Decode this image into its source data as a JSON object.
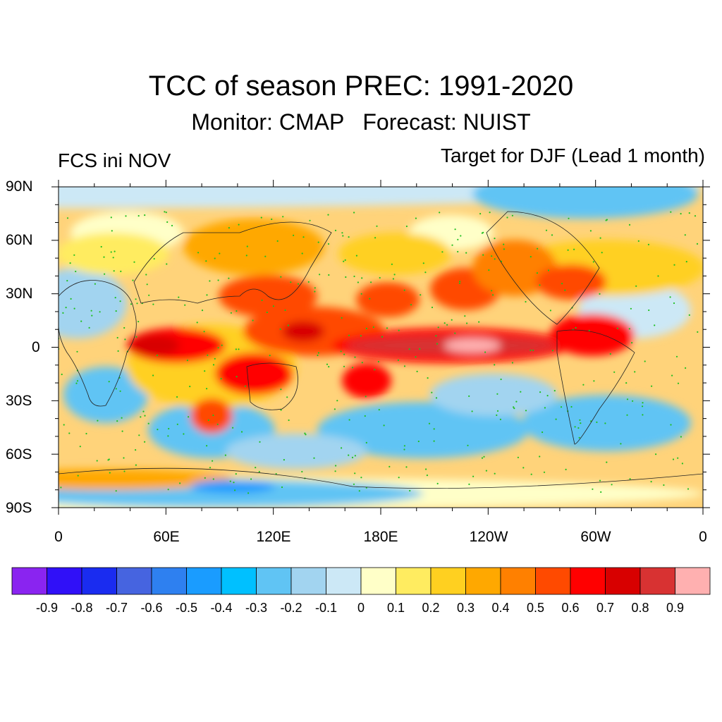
{
  "title": "TCC of season PREC: 1991-2020",
  "subtitle": "Monitor: CMAP   Forecast: NUIST",
  "left_label": "FCS ini NOV",
  "right_label": "Target for DJF (Lead 1 month)",
  "y_ticks": [
    "90N",
    "60N",
    "30N",
    "0",
    "30S",
    "60S",
    "90S"
  ],
  "x_ticks": [
    "0",
    "60E",
    "120E",
    "180E",
    "120W",
    "60W",
    "0"
  ],
  "colorbar": {
    "labels": [
      "-0.9",
      "-0.8",
      "-0.7",
      "-0.6",
      "-0.5",
      "-0.4",
      "-0.3",
      "-0.2",
      "-0.1",
      "0",
      "0.1",
      "0.2",
      "0.3",
      "0.4",
      "0.5",
      "0.6",
      "0.7",
      "0.8",
      "0.9"
    ],
    "colors": [
      "#8a24f0",
      "#3010f8",
      "#1a2cf0",
      "#4664e0",
      "#2e80f0",
      "#1a9cff",
      "#00c0ff",
      "#60c4f4",
      "#a2d4f0",
      "#cce8f6",
      "#ffffc8",
      "#ffec60",
      "#ffd020",
      "#ffa800",
      "#ff8000",
      "#ff4a00",
      "#ff0000",
      "#d80000",
      "#d83232",
      "#ffb0b0"
    ]
  }
}
